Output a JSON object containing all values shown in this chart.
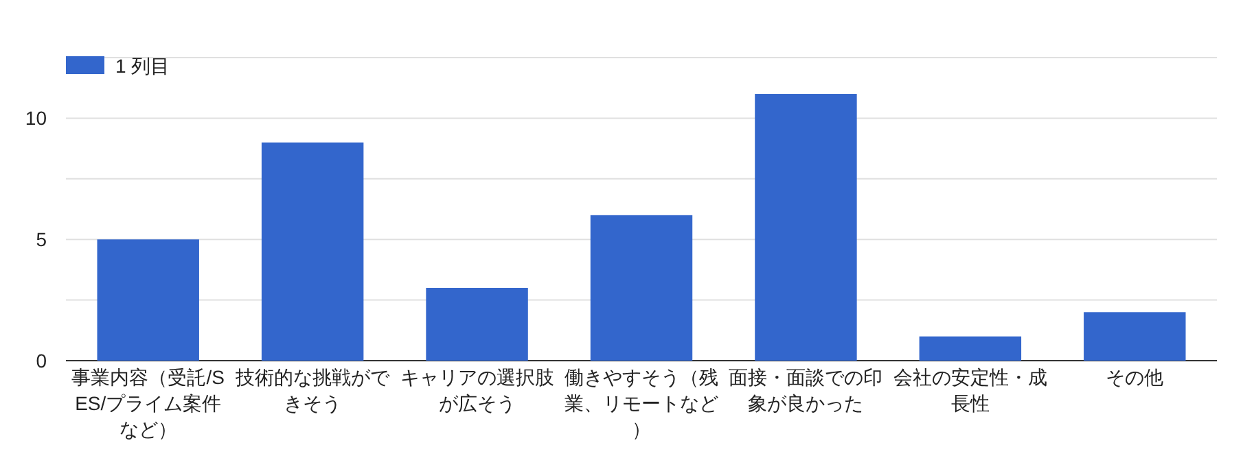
{
  "chart_data": {
    "type": "bar",
    "categories": [
      "事業内容（受託/SES/プライム案件など）",
      "技術的な挑戦ができそう",
      "キャリアの選択肢が広そう",
      "働きやすそう（残業、リモートなど）",
      "面接・面談での印象が良かった",
      "会社の安定性・成長性",
      "その他"
    ],
    "series": [
      {
        "name": "1 列目",
        "color": "#3366cc",
        "values": [
          5,
          9,
          3,
          6,
          11,
          1,
          2
        ]
      }
    ],
    "ylim": [
      0,
      12.5
    ],
    "yticks": [
      0,
      {
        "value": 2.5,
        "label": null
      },
      5,
      {
        "value": 7.5,
        "label": null
      },
      10,
      {
        "value": 12.5,
        "label": null
      }
    ],
    "grid": "y",
    "legend": "top left"
  }
}
